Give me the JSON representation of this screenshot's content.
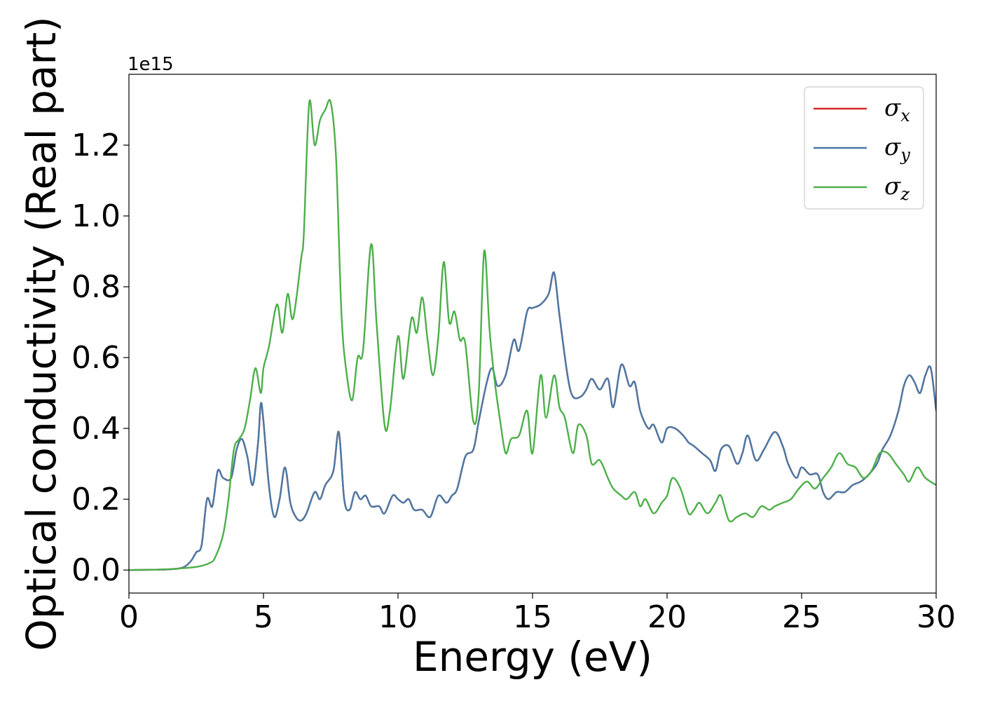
{
  "chart_data": {
    "type": "line",
    "xlabel": "Energy (eV)",
    "ylabel": "Optical conductivity (Real part)",
    "offset_text": "1e15",
    "xlim": [
      0,
      30
    ],
    "ylim": [
      -0.065,
      1.4
    ],
    "x_ticks": [
      0,
      5,
      10,
      15,
      20,
      25,
      30
    ],
    "x_tick_labels": [
      "0",
      "5",
      "10",
      "15",
      "20",
      "25",
      "30"
    ],
    "y_ticks": [
      0.0,
      0.2,
      0.4,
      0.6,
      0.8,
      1.0,
      1.2
    ],
    "y_tick_labels": [
      "0.0",
      "0.2",
      "0.4",
      "0.6",
      "0.8",
      "1.0",
      "1.2"
    ],
    "grid": false,
    "legend_position": "top-right",
    "series": [
      {
        "name": "σx",
        "legend_base": "σ",
        "legend_sub": "x",
        "color": "#d62728",
        "shares_data_with": "σy"
      },
      {
        "name": "σy",
        "legend_base": "σ",
        "legend_sub": "y",
        "color": "#4a79a5",
        "points": [
          [
            0,
            0
          ],
          [
            1,
            0.001
          ],
          [
            1.5,
            0.002
          ],
          [
            2,
            0.007
          ],
          [
            2.3,
            0.025
          ],
          [
            2.5,
            0.05
          ],
          [
            2.7,
            0.07
          ],
          [
            2.9,
            0.2
          ],
          [
            3.1,
            0.18
          ],
          [
            3.3,
            0.28
          ],
          [
            3.5,
            0.26
          ],
          [
            3.8,
            0.26
          ],
          [
            4.0,
            0.34
          ],
          [
            4.2,
            0.37
          ],
          [
            4.4,
            0.32
          ],
          [
            4.6,
            0.24
          ],
          [
            4.8,
            0.36
          ],
          [
            4.9,
            0.47
          ],
          [
            5.0,
            0.42
          ],
          [
            5.2,
            0.24
          ],
          [
            5.4,
            0.15
          ],
          [
            5.6,
            0.2
          ],
          [
            5.8,
            0.29
          ],
          [
            6.0,
            0.19
          ],
          [
            6.2,
            0.15
          ],
          [
            6.4,
            0.14
          ],
          [
            6.6,
            0.16
          ],
          [
            6.9,
            0.22
          ],
          [
            7.1,
            0.2
          ],
          [
            7.3,
            0.24
          ],
          [
            7.6,
            0.28
          ],
          [
            7.8,
            0.39
          ],
          [
            8.0,
            0.2
          ],
          [
            8.2,
            0.17
          ],
          [
            8.4,
            0.22
          ],
          [
            8.6,
            0.2
          ],
          [
            8.8,
            0.21
          ],
          [
            9.0,
            0.18
          ],
          [
            9.3,
            0.18
          ],
          [
            9.5,
            0.16
          ],
          [
            9.8,
            0.21
          ],
          [
            10.0,
            0.2
          ],
          [
            10.2,
            0.19
          ],
          [
            10.4,
            0.2
          ],
          [
            10.6,
            0.17
          ],
          [
            10.9,
            0.17
          ],
          [
            11.2,
            0.15
          ],
          [
            11.5,
            0.21
          ],
          [
            11.8,
            0.19
          ],
          [
            12.0,
            0.21
          ],
          [
            12.2,
            0.23
          ],
          [
            12.5,
            0.32
          ],
          [
            12.8,
            0.34
          ],
          [
            13.0,
            0.42
          ],
          [
            13.3,
            0.53
          ],
          [
            13.5,
            0.57
          ],
          [
            13.7,
            0.52
          ],
          [
            14.0,
            0.55
          ],
          [
            14.3,
            0.65
          ],
          [
            14.5,
            0.62
          ],
          [
            14.8,
            0.73
          ],
          [
            15.0,
            0.74
          ],
          [
            15.3,
            0.75
          ],
          [
            15.6,
            0.78
          ],
          [
            15.8,
            0.84
          ],
          [
            16.0,
            0.72
          ],
          [
            16.3,
            0.55
          ],
          [
            16.5,
            0.49
          ],
          [
            16.8,
            0.49
          ],
          [
            17.0,
            0.51
          ],
          [
            17.2,
            0.54
          ],
          [
            17.5,
            0.51
          ],
          [
            17.8,
            0.54
          ],
          [
            18.0,
            0.46
          ],
          [
            18.3,
            0.58
          ],
          [
            18.6,
            0.52
          ],
          [
            18.8,
            0.53
          ],
          [
            19.0,
            0.45
          ],
          [
            19.3,
            0.4
          ],
          [
            19.5,
            0.41
          ],
          [
            19.8,
            0.36
          ],
          [
            20.0,
            0.4
          ],
          [
            20.3,
            0.4
          ],
          [
            20.6,
            0.38
          ],
          [
            20.8,
            0.36
          ],
          [
            21.0,
            0.35
          ],
          [
            21.3,
            0.33
          ],
          [
            21.6,
            0.31
          ],
          [
            21.8,
            0.28
          ],
          [
            22.0,
            0.34
          ],
          [
            22.3,
            0.35
          ],
          [
            22.6,
            0.3
          ],
          [
            22.8,
            0.33
          ],
          [
            23.0,
            0.38
          ],
          [
            23.3,
            0.31
          ],
          [
            23.6,
            0.34
          ],
          [
            24.0,
            0.39
          ],
          [
            24.3,
            0.35
          ],
          [
            24.5,
            0.3
          ],
          [
            24.8,
            0.26
          ],
          [
            25.0,
            0.29
          ],
          [
            25.3,
            0.27
          ],
          [
            25.6,
            0.27
          ],
          [
            25.8,
            0.22
          ],
          [
            26.0,
            0.2
          ],
          [
            26.3,
            0.22
          ],
          [
            26.6,
            0.22
          ],
          [
            26.9,
            0.24
          ],
          [
            27.2,
            0.25
          ],
          [
            27.5,
            0.27
          ],
          [
            27.8,
            0.3
          ],
          [
            28.0,
            0.34
          ],
          [
            28.3,
            0.38
          ],
          [
            28.6,
            0.45
          ],
          [
            28.8,
            0.52
          ],
          [
            29.0,
            0.55
          ],
          [
            29.2,
            0.53
          ],
          [
            29.4,
            0.5
          ],
          [
            29.6,
            0.55
          ],
          [
            29.8,
            0.57
          ],
          [
            30.0,
            0.45
          ]
        ]
      },
      {
        "name": "σz",
        "legend_base": "σ",
        "legend_sub": "z",
        "color": "#4daf4a",
        "points": [
          [
            0,
            0
          ],
          [
            1,
            0.001
          ],
          [
            2,
            0.005
          ],
          [
            2.6,
            0.01
          ],
          [
            3.0,
            0.02
          ],
          [
            3.2,
            0.035
          ],
          [
            3.5,
            0.1
          ],
          [
            3.7,
            0.2
          ],
          [
            3.9,
            0.34
          ],
          [
            4.1,
            0.37
          ],
          [
            4.3,
            0.4
          ],
          [
            4.5,
            0.48
          ],
          [
            4.7,
            0.57
          ],
          [
            4.9,
            0.5
          ],
          [
            5.0,
            0.57
          ],
          [
            5.2,
            0.63
          ],
          [
            5.5,
            0.75
          ],
          [
            5.7,
            0.67
          ],
          [
            5.9,
            0.78
          ],
          [
            6.1,
            0.71
          ],
          [
            6.4,
            0.88
          ],
          [
            6.5,
            0.95
          ],
          [
            6.7,
            1.32
          ],
          [
            6.9,
            1.2
          ],
          [
            7.1,
            1.27
          ],
          [
            7.3,
            1.3
          ],
          [
            7.5,
            1.32
          ],
          [
            7.7,
            1.16
          ],
          [
            7.9,
            0.72
          ],
          [
            8.1,
            0.55
          ],
          [
            8.3,
            0.48
          ],
          [
            8.5,
            0.6
          ],
          [
            8.7,
            0.62
          ],
          [
            9.0,
            0.92
          ],
          [
            9.2,
            0.7
          ],
          [
            9.5,
            0.41
          ],
          [
            9.7,
            0.45
          ],
          [
            10.0,
            0.66
          ],
          [
            10.2,
            0.54
          ],
          [
            10.5,
            0.71
          ],
          [
            10.7,
            0.67
          ],
          [
            10.9,
            0.77
          ],
          [
            11.1,
            0.65
          ],
          [
            11.3,
            0.55
          ],
          [
            11.5,
            0.66
          ],
          [
            11.7,
            0.87
          ],
          [
            11.9,
            0.7
          ],
          [
            12.1,
            0.73
          ],
          [
            12.3,
            0.65
          ],
          [
            12.5,
            0.64
          ],
          [
            12.8,
            0.42
          ],
          [
            13.0,
            0.5
          ],
          [
            13.2,
            0.9
          ],
          [
            13.4,
            0.68
          ],
          [
            13.6,
            0.53
          ],
          [
            13.8,
            0.42
          ],
          [
            14.0,
            0.33
          ],
          [
            14.2,
            0.37
          ],
          [
            14.5,
            0.38
          ],
          [
            14.8,
            0.45
          ],
          [
            15.0,
            0.33
          ],
          [
            15.3,
            0.55
          ],
          [
            15.5,
            0.43
          ],
          [
            15.8,
            0.55
          ],
          [
            16.0,
            0.46
          ],
          [
            16.2,
            0.43
          ],
          [
            16.5,
            0.33
          ],
          [
            16.7,
            0.41
          ],
          [
            17.0,
            0.38
          ],
          [
            17.2,
            0.3
          ],
          [
            17.5,
            0.31
          ],
          [
            17.8,
            0.26
          ],
          [
            18.0,
            0.23
          ],
          [
            18.3,
            0.21
          ],
          [
            18.5,
            0.2
          ],
          [
            18.8,
            0.22
          ],
          [
            19.0,
            0.18
          ],
          [
            19.2,
            0.2
          ],
          [
            19.5,
            0.16
          ],
          [
            19.8,
            0.19
          ],
          [
            20.0,
            0.21
          ],
          [
            20.2,
            0.26
          ],
          [
            20.5,
            0.23
          ],
          [
            20.8,
            0.16
          ],
          [
            21.0,
            0.17
          ],
          [
            21.2,
            0.19
          ],
          [
            21.5,
            0.16
          ],
          [
            21.8,
            0.19
          ],
          [
            22.0,
            0.21
          ],
          [
            22.3,
            0.14
          ],
          [
            22.6,
            0.15
          ],
          [
            22.9,
            0.16
          ],
          [
            23.2,
            0.15
          ],
          [
            23.5,
            0.18
          ],
          [
            23.8,
            0.17
          ],
          [
            24.0,
            0.18
          ],
          [
            24.3,
            0.19
          ],
          [
            24.6,
            0.2
          ],
          [
            24.9,
            0.23
          ],
          [
            25.2,
            0.25
          ],
          [
            25.5,
            0.23
          ],
          [
            25.8,
            0.26
          ],
          [
            26.1,
            0.29
          ],
          [
            26.4,
            0.33
          ],
          [
            26.7,
            0.3
          ],
          [
            27.0,
            0.29
          ],
          [
            27.3,
            0.26
          ],
          [
            27.6,
            0.28
          ],
          [
            27.9,
            0.33
          ],
          [
            28.2,
            0.33
          ],
          [
            28.5,
            0.3
          ],
          [
            28.8,
            0.27
          ],
          [
            29.0,
            0.25
          ],
          [
            29.3,
            0.29
          ],
          [
            29.6,
            0.26
          ],
          [
            30.0,
            0.24
          ]
        ]
      }
    ]
  }
}
